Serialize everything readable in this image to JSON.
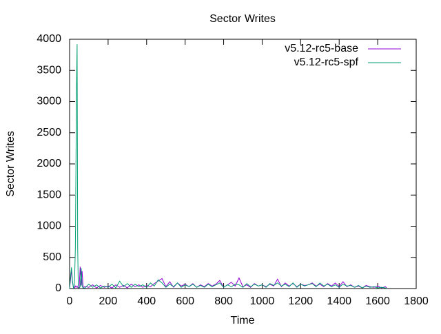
{
  "chart_data": {
    "type": "line",
    "title": "Sector Writes",
    "xlabel": "Time",
    "ylabel": "Sector Writes",
    "x": [
      0,
      5,
      10,
      15,
      20,
      25,
      30,
      33,
      36,
      39,
      42,
      45,
      50,
      55,
      60,
      65,
      70,
      80,
      100,
      120,
      140,
      160,
      180,
      200,
      220,
      240,
      260,
      280,
      300,
      320,
      340,
      360,
      380,
      400,
      420,
      440,
      460,
      480,
      500,
      520,
      540,
      560,
      580,
      600,
      620,
      640,
      660,
      680,
      700,
      720,
      740,
      760,
      780,
      800,
      820,
      840,
      860,
      880,
      900,
      920,
      940,
      960,
      980,
      1000,
      1020,
      1040,
      1060,
      1080,
      1100,
      1120,
      1140,
      1160,
      1180,
      1200,
      1220,
      1240,
      1260,
      1280,
      1300,
      1320,
      1340,
      1360,
      1380,
      1400,
      1420,
      1440,
      1460,
      1480,
      1500,
      1520,
      1540,
      1560,
      1580,
      1600,
      1620,
      1640,
      1650
    ],
    "series": [
      {
        "name": "v5.12-rc5-base",
        "color": "#9400d3",
        "values": [
          0,
          150,
          300,
          100,
          20,
          10,
          40,
          20,
          30,
          40,
          20,
          10,
          30,
          350,
          50,
          280,
          20,
          30,
          20,
          60,
          10,
          50,
          20,
          40,
          10,
          60,
          20,
          50,
          10,
          70,
          30,
          60,
          20,
          50,
          30,
          80,
          120,
          160,
          30,
          110,
          20,
          90,
          40,
          70,
          30,
          80,
          20,
          60,
          30,
          80,
          40,
          70,
          130,
          20,
          60,
          100,
          40,
          170,
          30,
          60,
          20,
          80,
          40,
          60,
          30,
          70,
          40,
          150,
          30,
          90,
          40,
          80,
          30,
          70,
          50,
          60,
          90,
          40,
          70,
          30,
          80,
          40,
          90,
          30,
          110,
          30,
          60,
          20,
          40,
          10,
          50,
          30,
          20,
          40,
          10,
          30,
          0
        ]
      },
      {
        "name": "v5.12-rc5-spf",
        "color": "#009e73",
        "values": [
          0,
          200,
          340,
          120,
          10,
          50,
          650,
          1960,
          3260,
          3920,
          650,
          60,
          10,
          30,
          330,
          40,
          10,
          10,
          70,
          20,
          60,
          10,
          40,
          20,
          70,
          10,
          120,
          30,
          80,
          20,
          70,
          30,
          60,
          20,
          90,
          40,
          140,
          90,
          20,
          70,
          30,
          90,
          20,
          60,
          30,
          70,
          20,
          50,
          20,
          70,
          30,
          60,
          90,
          20,
          60,
          30,
          70,
          60,
          20,
          80,
          30,
          70,
          40,
          60,
          20,
          80,
          50,
          90,
          40,
          70,
          30,
          90,
          20,
          70,
          40,
          60,
          80,
          30,
          90,
          40,
          70,
          30,
          60,
          20,
          70,
          40,
          50,
          20,
          50,
          10,
          40,
          20,
          30,
          10,
          20,
          10,
          0
        ]
      }
    ],
    "xlim": [
      0,
      1800
    ],
    "xticks": [
      0,
      200,
      400,
      600,
      800,
      1000,
      1200,
      1400,
      1600,
      1800
    ],
    "ylim": [
      0,
      4000
    ],
    "yticks": [
      0,
      500,
      1000,
      1500,
      2000,
      2500,
      3000,
      3500,
      4000
    ],
    "legend": "top-right"
  }
}
